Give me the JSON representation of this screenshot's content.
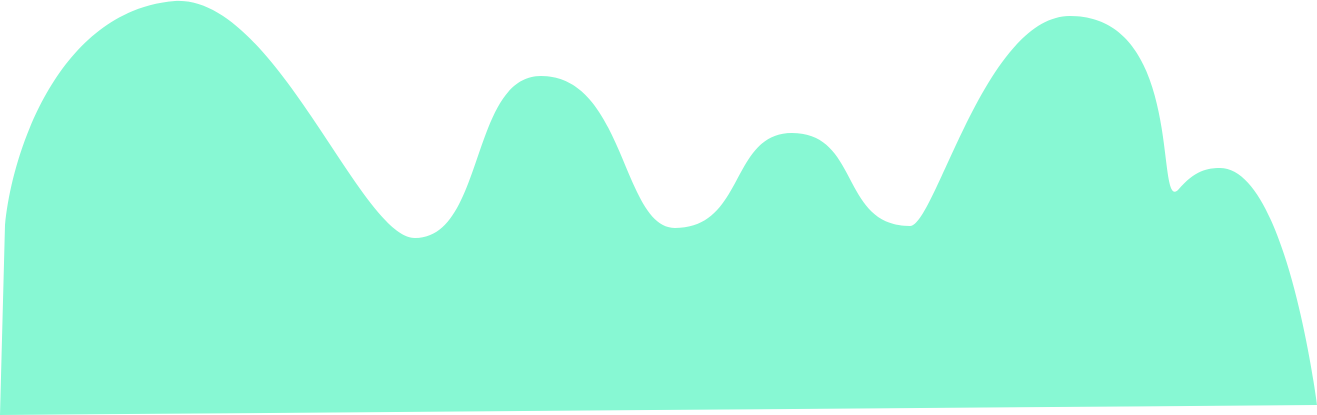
{
  "colors": {
    "background": "#ffffff",
    "wave_fill": "#87f8d3"
  },
  "shapes": [
    {
      "name": "wave-shape",
      "kind": "decorative-blob"
    }
  ]
}
